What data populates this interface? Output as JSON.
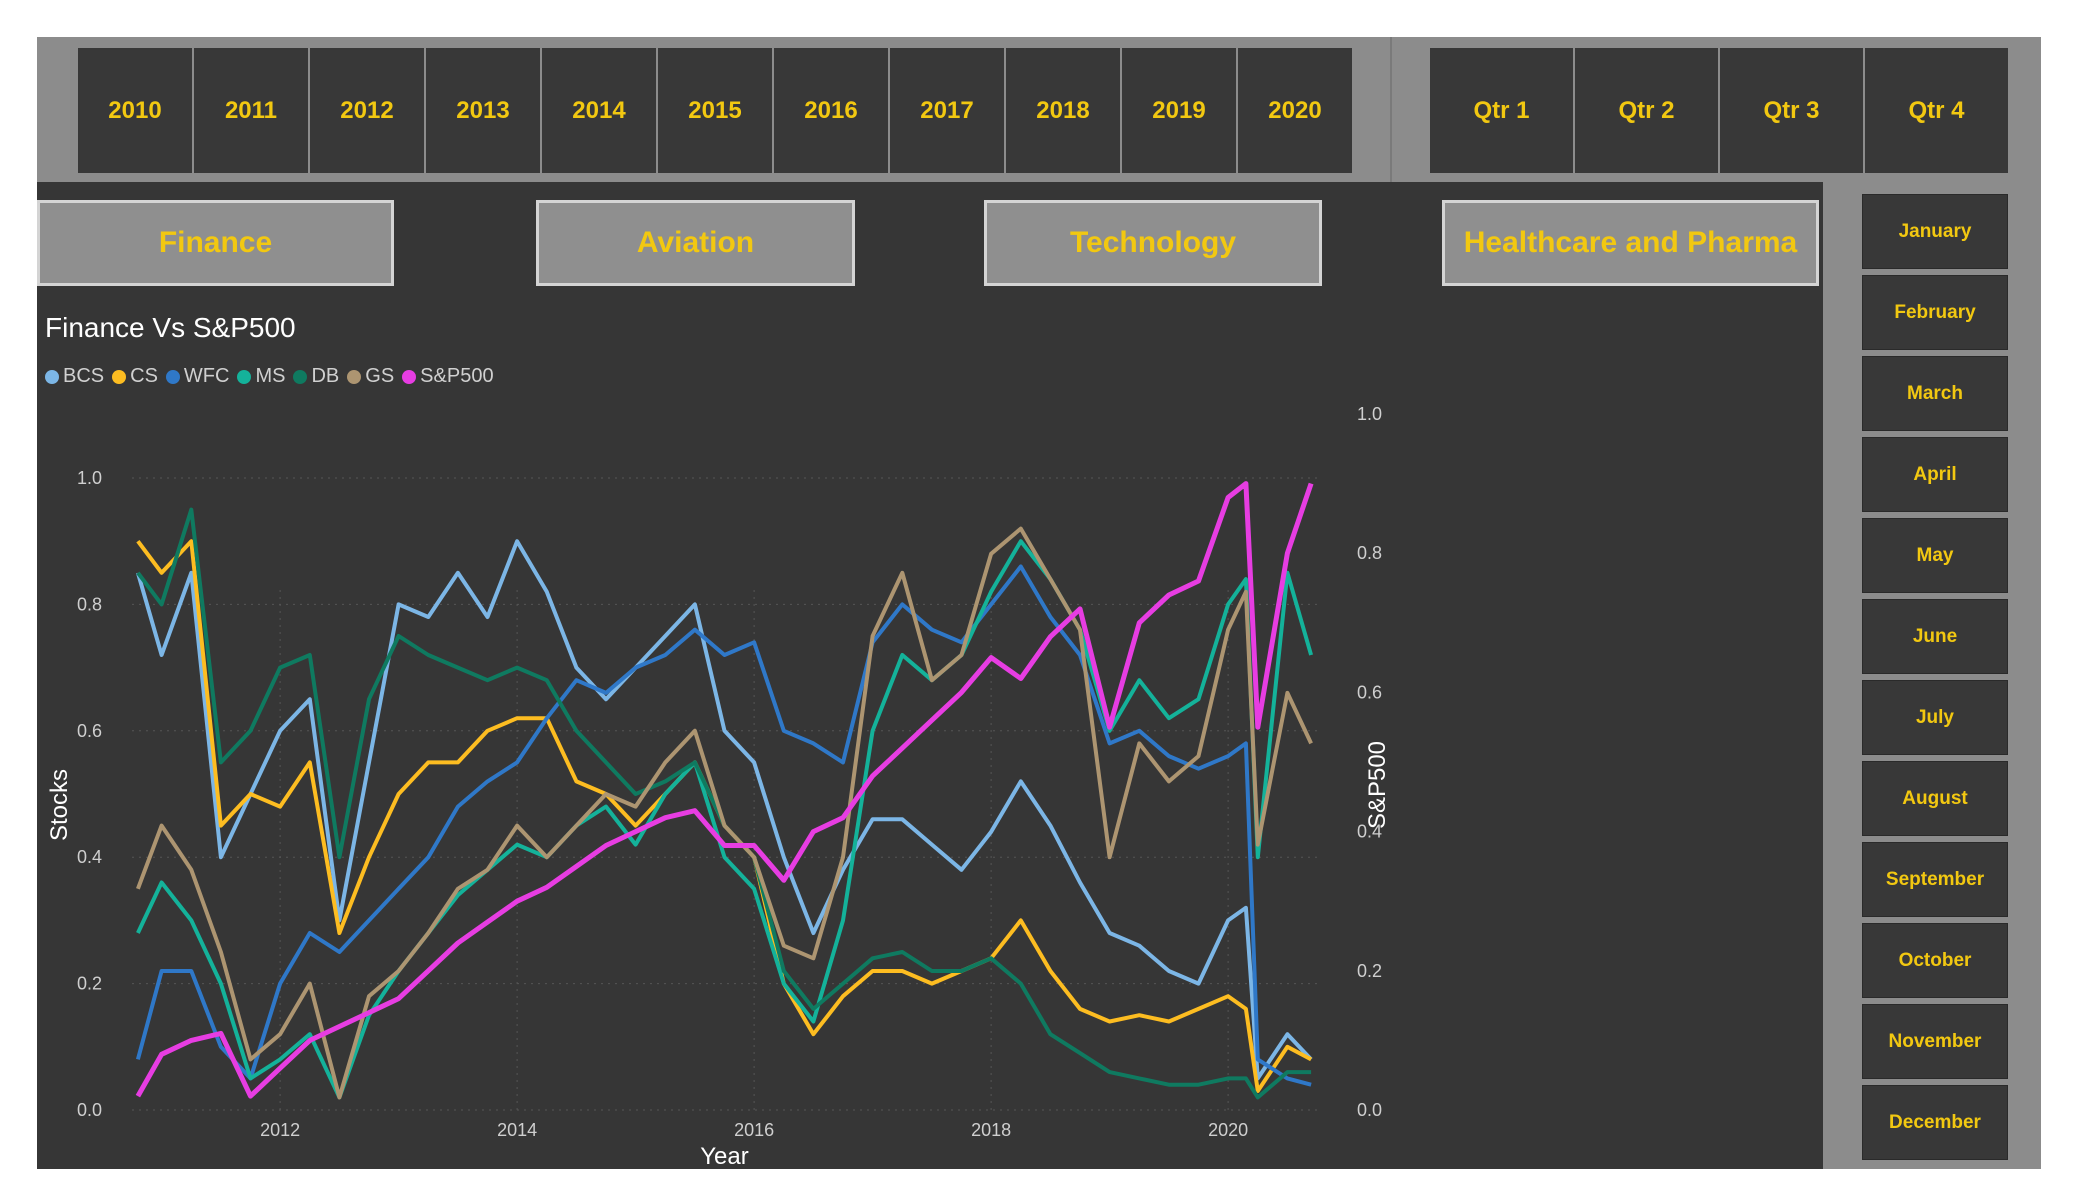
{
  "years": [
    "2010",
    "2011",
    "2012",
    "2013",
    "2014",
    "2015",
    "2016",
    "2017",
    "2018",
    "2019",
    "2020"
  ],
  "quarters": [
    "Qtr 1",
    "Qtr 2",
    "Qtr 3",
    "Qtr 4"
  ],
  "months": [
    "January",
    "February",
    "March",
    "April",
    "May",
    "June",
    "July",
    "August",
    "September",
    "October",
    "November",
    "December"
  ],
  "sectors": [
    "Finance",
    "Aviation",
    "Technology",
    "Healthcare and Pharma"
  ],
  "chart_data": {
    "type": "line",
    "title": "Finance Vs S&P500",
    "xlabel": "Year",
    "ylabel": "Stocks",
    "y2label": "S&P500",
    "xlim": [
      2010.75,
      2020.75
    ],
    "ylim": [
      0,
      1
    ],
    "y2lim": [
      0,
      1
    ],
    "xticks": [
      "2012",
      "2014",
      "2016",
      "2018",
      "2020"
    ],
    "yticks": [
      "0.0",
      "0.2",
      "0.4",
      "0.6",
      "0.8",
      "1.0"
    ],
    "y2ticks": [
      "0.0",
      "0.2",
      "0.4",
      "0.6",
      "0.8",
      "1.0"
    ],
    "grid": true,
    "legend_position": "top-left",
    "x": [
      2010.8,
      2011.0,
      2011.25,
      2011.5,
      2011.75,
      2012.0,
      2012.25,
      2012.5,
      2012.75,
      2013.0,
      2013.25,
      2013.5,
      2013.75,
      2014.0,
      2014.25,
      2014.5,
      2014.75,
      2015.0,
      2015.25,
      2015.5,
      2015.75,
      2016.0,
      2016.25,
      2016.5,
      2016.75,
      2017.0,
      2017.25,
      2017.5,
      2017.75,
      2018.0,
      2018.25,
      2018.5,
      2018.75,
      2019.0,
      2019.25,
      2019.5,
      2019.75,
      2020.0,
      2020.15,
      2020.25,
      2020.5,
      2020.7
    ],
    "series": [
      {
        "name": "BCS",
        "color": "#7cb6e6",
        "axis": "left",
        "values": [
          0.85,
          0.72,
          0.85,
          0.4,
          0.5,
          0.6,
          0.65,
          0.3,
          0.55,
          0.8,
          0.78,
          0.85,
          0.78,
          0.9,
          0.82,
          0.7,
          0.65,
          0.7,
          0.75,
          0.8,
          0.6,
          0.55,
          0.4,
          0.28,
          0.38,
          0.46,
          0.46,
          0.42,
          0.38,
          0.44,
          0.52,
          0.45,
          0.36,
          0.28,
          0.26,
          0.22,
          0.2,
          0.3,
          0.32,
          0.05,
          0.12,
          0.08
        ]
      },
      {
        "name": "CS",
        "color": "#fdbd21",
        "axis": "left",
        "values": [
          0.9,
          0.85,
          0.9,
          0.45,
          0.5,
          0.48,
          0.55,
          0.28,
          0.4,
          0.5,
          0.55,
          0.55,
          0.6,
          0.62,
          0.62,
          0.52,
          0.5,
          0.45,
          0.5,
          0.55,
          0.45,
          0.4,
          0.2,
          0.12,
          0.18,
          0.22,
          0.22,
          0.2,
          0.22,
          0.24,
          0.3,
          0.22,
          0.16,
          0.14,
          0.15,
          0.14,
          0.16,
          0.18,
          0.16,
          0.03,
          0.1,
          0.08
        ]
      },
      {
        "name": "WFC",
        "color": "#2f78c8",
        "axis": "left",
        "values": [
          0.08,
          0.22,
          0.22,
          0.1,
          0.05,
          0.2,
          0.28,
          0.25,
          0.3,
          0.35,
          0.4,
          0.48,
          0.52,
          0.55,
          0.62,
          0.68,
          0.66,
          0.7,
          0.72,
          0.76,
          0.72,
          0.74,
          0.6,
          0.58,
          0.55,
          0.74,
          0.8,
          0.76,
          0.74,
          0.8,
          0.86,
          0.78,
          0.72,
          0.58,
          0.6,
          0.56,
          0.54,
          0.56,
          0.58,
          0.08,
          0.05,
          0.04
        ]
      },
      {
        "name": "MS",
        "color": "#14b29a",
        "axis": "left",
        "values": [
          0.28,
          0.36,
          0.3,
          0.2,
          0.05,
          0.08,
          0.12,
          0.02,
          0.15,
          0.22,
          0.28,
          0.34,
          0.38,
          0.42,
          0.4,
          0.45,
          0.48,
          0.42,
          0.5,
          0.55,
          0.4,
          0.35,
          0.2,
          0.14,
          0.3,
          0.6,
          0.72,
          0.68,
          0.72,
          0.82,
          0.9,
          0.84,
          0.76,
          0.6,
          0.68,
          0.62,
          0.65,
          0.8,
          0.84,
          0.4,
          0.85,
          0.72
        ]
      },
      {
        "name": "DB",
        "color": "#0f7a60",
        "axis": "left",
        "values": [
          0.85,
          0.8,
          0.95,
          0.55,
          0.6,
          0.7,
          0.72,
          0.4,
          0.65,
          0.75,
          0.72,
          0.7,
          0.68,
          0.7,
          0.68,
          0.6,
          0.55,
          0.5,
          0.52,
          0.55,
          0.45,
          0.4,
          0.22,
          0.16,
          0.2,
          0.24,
          0.25,
          0.22,
          0.22,
          0.24,
          0.2,
          0.12,
          0.09,
          0.06,
          0.05,
          0.04,
          0.04,
          0.05,
          0.05,
          0.02,
          0.06,
          0.06
        ]
      },
      {
        "name": "GS",
        "color": "#ad9571",
        "axis": "left",
        "values": [
          0.35,
          0.45,
          0.38,
          0.25,
          0.08,
          0.12,
          0.2,
          0.02,
          0.18,
          0.22,
          0.28,
          0.35,
          0.38,
          0.45,
          0.4,
          0.45,
          0.5,
          0.48,
          0.55,
          0.6,
          0.45,
          0.4,
          0.26,
          0.24,
          0.4,
          0.75,
          0.85,
          0.68,
          0.72,
          0.88,
          0.92,
          0.84,
          0.76,
          0.4,
          0.58,
          0.52,
          0.56,
          0.76,
          0.82,
          0.42,
          0.66,
          0.58
        ]
      },
      {
        "name": "S&P500",
        "color": "#e73de2",
        "axis": "right",
        "values": [
          0.02,
          0.08,
          0.1,
          0.11,
          0.02,
          0.06,
          0.1,
          0.12,
          0.14,
          0.16,
          0.2,
          0.24,
          0.27,
          0.3,
          0.32,
          0.35,
          0.38,
          0.4,
          0.42,
          0.43,
          0.38,
          0.38,
          0.33,
          0.4,
          0.42,
          0.48,
          0.52,
          0.56,
          0.6,
          0.65,
          0.62,
          0.68,
          0.72,
          0.55,
          0.7,
          0.74,
          0.76,
          0.88,
          0.9,
          0.55,
          0.8,
          0.9
        ]
      }
    ]
  }
}
